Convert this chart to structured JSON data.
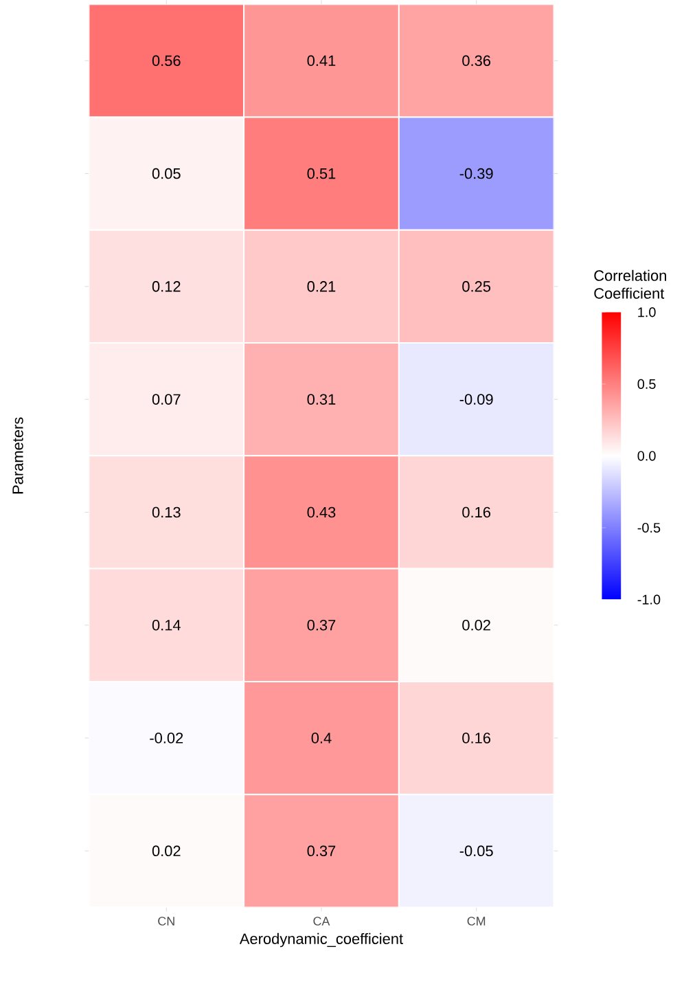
{
  "chart_data": {
    "type": "heatmap",
    "xlabel": "Aerodynamic_coefficient",
    "ylabel": "Parameters",
    "clabel": "Correlation Coefficient",
    "categories": [
      "CN",
      "CA",
      "CM"
    ],
    "y_categories": [
      null,
      null,
      null,
      null,
      null,
      null,
      null,
      null
    ],
    "cells": [
      [
        0.56,
        0.41,
        0.36
      ],
      [
        0.05,
        0.51,
        -0.39
      ],
      [
        0.12,
        0.21,
        0.25
      ],
      [
        0.07,
        0.31,
        -0.09
      ],
      [
        0.13,
        0.43,
        0.16
      ],
      [
        0.14,
        0.37,
        0.02
      ],
      [
        -0.02,
        0.4,
        0.16
      ],
      [
        0.02,
        0.37,
        -0.05
      ]
    ],
    "data_labels": true,
    "clim": [
      -1,
      1
    ],
    "cticks": [
      {
        "value": -1,
        "label": "-1.0"
      },
      {
        "value": -0.5,
        "label": "-0.5"
      },
      {
        "value": 0,
        "label": "0.0"
      },
      {
        "value": 0.5,
        "label": "0.5"
      },
      {
        "value": 1,
        "label": "1.0"
      }
    ],
    "tick_labels": "x"
  }
}
